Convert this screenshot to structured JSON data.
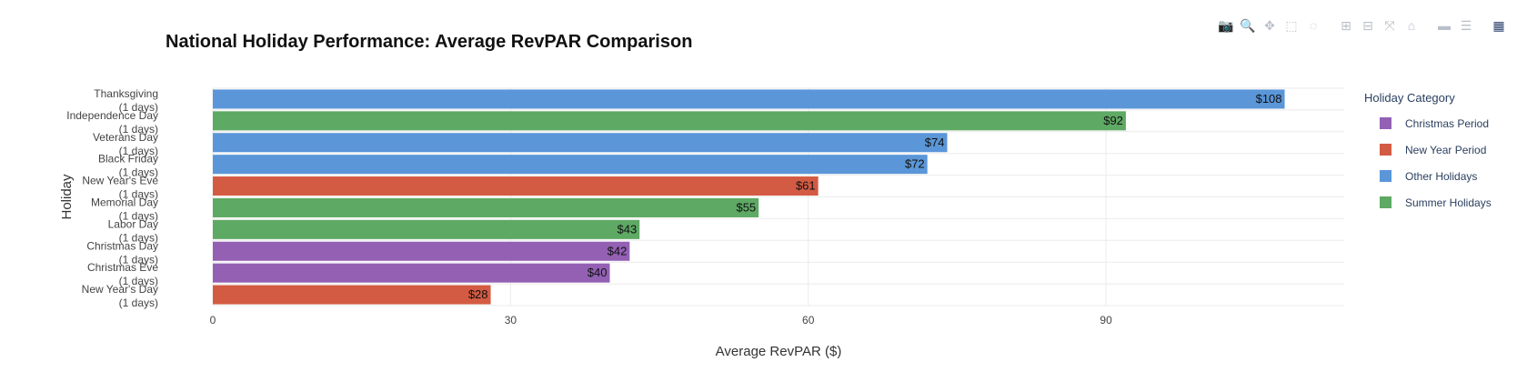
{
  "modebar": {
    "buttons": [
      {
        "name": "camera-icon",
        "glyph": "📷"
      },
      {
        "name": "zoom-icon",
        "glyph": "🔍"
      },
      {
        "name": "pan-icon",
        "glyph": "✥"
      },
      {
        "name": "box-select-icon",
        "glyph": "⬚"
      },
      {
        "name": "lasso-icon",
        "glyph": "◌"
      },
      {
        "name": "zoom-in-icon",
        "glyph": "⊞"
      },
      {
        "name": "zoom-out-icon",
        "glyph": "⊟"
      },
      {
        "name": "autoscale-icon",
        "glyph": "⤧"
      },
      {
        "name": "reset-axes-icon",
        "glyph": "⌂"
      },
      {
        "name": "spike-lines-icon",
        "glyph": "▬"
      },
      {
        "name": "compare-hover-icon",
        "glyph": "☰"
      },
      {
        "name": "plotly-logo-icon",
        "glyph": "▦"
      }
    ]
  },
  "chart_data": {
    "type": "bar",
    "orientation": "horizontal",
    "title": "National Holiday Performance: Average RevPAR Comparison",
    "xlabel": "Average RevPAR ($)",
    "ylabel": "Holiday",
    "xlim": [
      0,
      114
    ],
    "xticks": [
      0,
      30,
      60,
      90
    ],
    "grid": true,
    "legend_title": "Holiday Category",
    "legend_position": "right",
    "categories": [
      {
        "name": "Christmas Period",
        "color": "#9360b4"
      },
      {
        "name": "New Year Period",
        "color": "#d35b43"
      },
      {
        "name": "Other Holidays",
        "color": "#5a96d8"
      },
      {
        "name": "Summer Holidays",
        "color": "#5ea964"
      }
    ],
    "bars": [
      {
        "label_line1": "Thanksgiving",
        "label_line2": "(1 days)",
        "value": 108,
        "data_label": "$108",
        "category": "Other Holidays"
      },
      {
        "label_line1": "Independence Day",
        "label_line2": "(1 days)",
        "value": 92,
        "data_label": "$92",
        "category": "Summer Holidays"
      },
      {
        "label_line1": "Veterans Day",
        "label_line2": "(1 days)",
        "value": 74,
        "data_label": "$74",
        "category": "Other Holidays"
      },
      {
        "label_line1": "Black Friday",
        "label_line2": "(1 days)",
        "value": 72,
        "data_label": "$72",
        "category": "Other Holidays"
      },
      {
        "label_line1": "New Year's Eve",
        "label_line2": "(1 days)",
        "value": 61,
        "data_label": "$61",
        "category": "New Year Period"
      },
      {
        "label_line1": "Memorial Day",
        "label_line2": "(1 days)",
        "value": 55,
        "data_label": "$55",
        "category": "Summer Holidays"
      },
      {
        "label_line1": "Labor Day",
        "label_line2": "(1 days)",
        "value": 43,
        "data_label": "$43",
        "category": "Summer Holidays"
      },
      {
        "label_line1": "Christmas Day",
        "label_line2": "(1 days)",
        "value": 42,
        "data_label": "$42",
        "category": "Christmas Period"
      },
      {
        "label_line1": "Christmas Eve",
        "label_line2": "(1 days)",
        "value": 40,
        "data_label": "$40",
        "category": "Christmas Period"
      },
      {
        "label_line1": "New Year's Day",
        "label_line2": "(1 days)",
        "value": 28,
        "data_label": "$28",
        "category": "New Year Period"
      }
    ]
  }
}
